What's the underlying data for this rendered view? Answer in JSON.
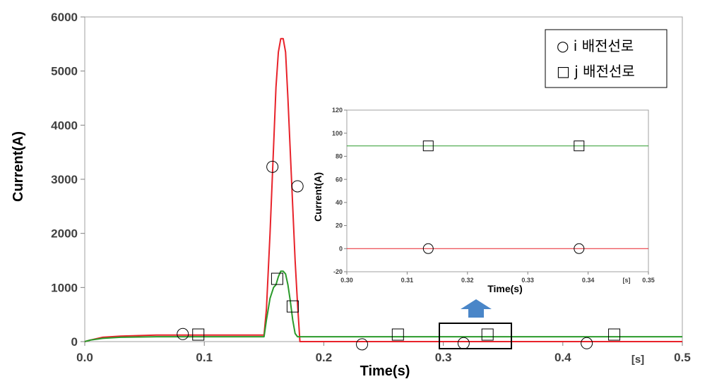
{
  "colors": {
    "i_line": "#e8222a",
    "j_line": "#2a9a2a",
    "arrow": "#4a86c8",
    "marker": "#000000"
  },
  "chart_data": [
    {
      "type": "line",
      "title": "",
      "xlabel": "Time(s)",
      "ylabel": "Current(A)",
      "x_unit_label": "[s]",
      "xlim": [
        0.0,
        0.5
      ],
      "ylim": [
        0,
        6000
      ],
      "x_ticks": [
        "0.0",
        "0.1",
        "0.2",
        "0.3",
        "0.4",
        "0.5"
      ],
      "y_ticks": [
        "0",
        "1000",
        "2000",
        "3000",
        "4000",
        "5000",
        "6000"
      ],
      "legend": {
        "position": "top-right",
        "entries": [
          "○ i 배전선로",
          "□ j 배전선로"
        ]
      },
      "grid": false,
      "series": [
        {
          "name": "i 배전선로",
          "color": "#e8222a",
          "marker": "circle",
          "x": [
            0.0,
            0.005,
            0.015,
            0.03,
            0.06,
            0.1,
            0.15,
            0.152,
            0.155,
            0.158,
            0.16,
            0.162,
            0.164,
            0.166,
            0.168,
            0.17,
            0.172,
            0.174,
            0.176,
            0.178,
            0.18,
            0.2,
            0.3,
            0.5
          ],
          "y": [
            0,
            30,
            80,
            100,
            120,
            120,
            120,
            600,
            2000,
            3600,
            4700,
            5350,
            5600,
            5600,
            5350,
            4500,
            3500,
            2500,
            1500,
            700,
            0,
            0,
            0,
            0
          ],
          "marker_x": [
            0.082,
            0.157,
            0.178,
            0.232,
            0.317,
            0.42
          ],
          "marker_y": [
            140,
            3230,
            2870,
            -50,
            -30,
            -30
          ]
        },
        {
          "name": "j 배전선로",
          "color": "#2a9a2a",
          "marker": "square",
          "x": [
            0.0,
            0.005,
            0.015,
            0.03,
            0.06,
            0.1,
            0.15,
            0.152,
            0.155,
            0.158,
            0.16,
            0.162,
            0.164,
            0.166,
            0.168,
            0.17,
            0.172,
            0.174,
            0.176,
            0.178,
            0.18,
            0.2,
            0.3,
            0.5
          ],
          "y": [
            0,
            30,
            60,
            80,
            90,
            90,
            90,
            400,
            800,
            1000,
            1050,
            1200,
            1300,
            1300,
            1250,
            1050,
            750,
            400,
            150,
            90,
            90,
            90,
            90,
            90
          ],
          "marker_x": [
            0.095,
            0.161,
            0.174,
            0.262,
            0.337,
            0.443
          ],
          "marker_y": [
            130,
            1160,
            650,
            130,
            130,
            130
          ]
        }
      ]
    },
    {
      "type": "line",
      "title": "",
      "xlabel": "Time(s)",
      "ylabel": "Current(A)",
      "x_unit_label": "[s]",
      "xlim": [
        0.3,
        0.35
      ],
      "ylim": [
        -20,
        120
      ],
      "x_ticks": [
        "0.30",
        "0.31",
        "0.32",
        "0.33",
        "0.34",
        "0.35"
      ],
      "y_ticks": [
        "-20",
        "0",
        "20",
        "40",
        "60",
        "80",
        "100",
        "120"
      ],
      "grid": false,
      "series": [
        {
          "name": "i 배전선로",
          "color": "#e8222a",
          "marker": "circle",
          "x": [
            0.3,
            0.35
          ],
          "y": [
            0,
            0
          ],
          "marker_x": [
            0.3135,
            0.3385
          ],
          "marker_y": [
            0,
            0
          ]
        },
        {
          "name": "j 배전선로",
          "color": "#2a9a2a",
          "marker": "square",
          "x": [
            0.3,
            0.35
          ],
          "y": [
            89,
            89
          ],
          "marker_x": [
            0.3135,
            0.3385
          ],
          "marker_y": [
            89,
            89
          ]
        }
      ]
    }
  ]
}
